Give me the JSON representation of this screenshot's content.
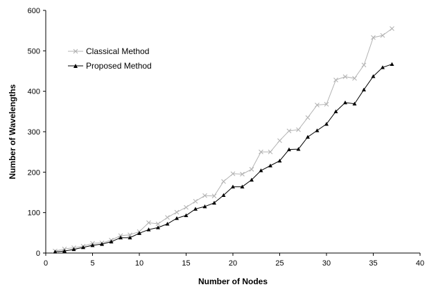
{
  "chart_data": {
    "type": "line",
    "title": "",
    "xlabel": "Number of Nodes",
    "ylabel": "Number of Wavelengths",
    "xlim": [
      0,
      40
    ],
    "ylim": [
      0,
      600
    ],
    "x_ticks": [
      "0",
      "5",
      "10",
      "15",
      "20",
      "25",
      "30",
      "35",
      "40"
    ],
    "y_ticks": [
      "0",
      "100",
      "200",
      "300",
      "400",
      "500",
      "600"
    ],
    "grid": false,
    "legend_position": "top-left",
    "x": [
      1,
      2,
      3,
      4,
      5,
      6,
      7,
      8,
      9,
      10,
      11,
      12,
      13,
      14,
      15,
      16,
      17,
      18,
      19,
      20,
      21,
      22,
      23,
      24,
      25,
      26,
      27,
      28,
      29,
      30,
      31,
      32,
      33,
      34,
      35,
      36,
      37
    ],
    "series": [
      {
        "name": "Classical Method",
        "color": "#b3b3b3",
        "marker": "x",
        "values": [
          5,
          10,
          13,
          17,
          24,
          25,
          32,
          43,
          45,
          53,
          75,
          72,
          88,
          101,
          113,
          128,
          142,
          141,
          177,
          196,
          195,
          207,
          250,
          250,
          278,
          302,
          305,
          335,
          366,
          368,
          428,
          436,
          432,
          465,
          533,
          538,
          555
        ]
      },
      {
        "name": "Proposed Method",
        "color": "#000000",
        "marker": "triangle",
        "values": [
          3,
          5,
          9,
          14,
          19,
          22,
          28,
          38,
          38,
          49,
          58,
          63,
          72,
          86,
          93,
          109,
          115,
          124,
          143,
          164,
          164,
          181,
          204,
          216,
          228,
          256,
          257,
          287,
          303,
          319,
          350,
          372,
          369,
          404,
          437,
          459,
          467
        ]
      }
    ]
  }
}
